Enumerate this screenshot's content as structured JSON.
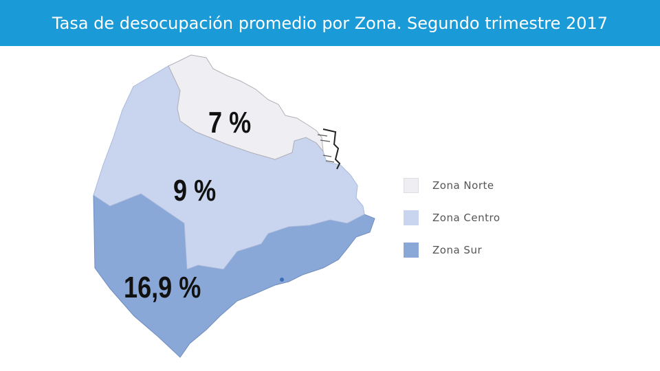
{
  "header": {
    "title": "Tasa de desocupación promedio por Zona. Segundo trimestre 2017",
    "background": "#1a9ad6"
  },
  "map": {
    "zones": [
      {
        "id": "norte",
        "label": "Zona Norte",
        "value": "7 %",
        "fill": "#efeff3"
      },
      {
        "id": "centro",
        "label": "Zona Centro",
        "value": "9 %",
        "fill": "#c9d5ee"
      },
      {
        "id": "sur",
        "label": "Zona Sur",
        "value": "16,9 %",
        "fill": "#89a8d8"
      }
    ]
  }
}
